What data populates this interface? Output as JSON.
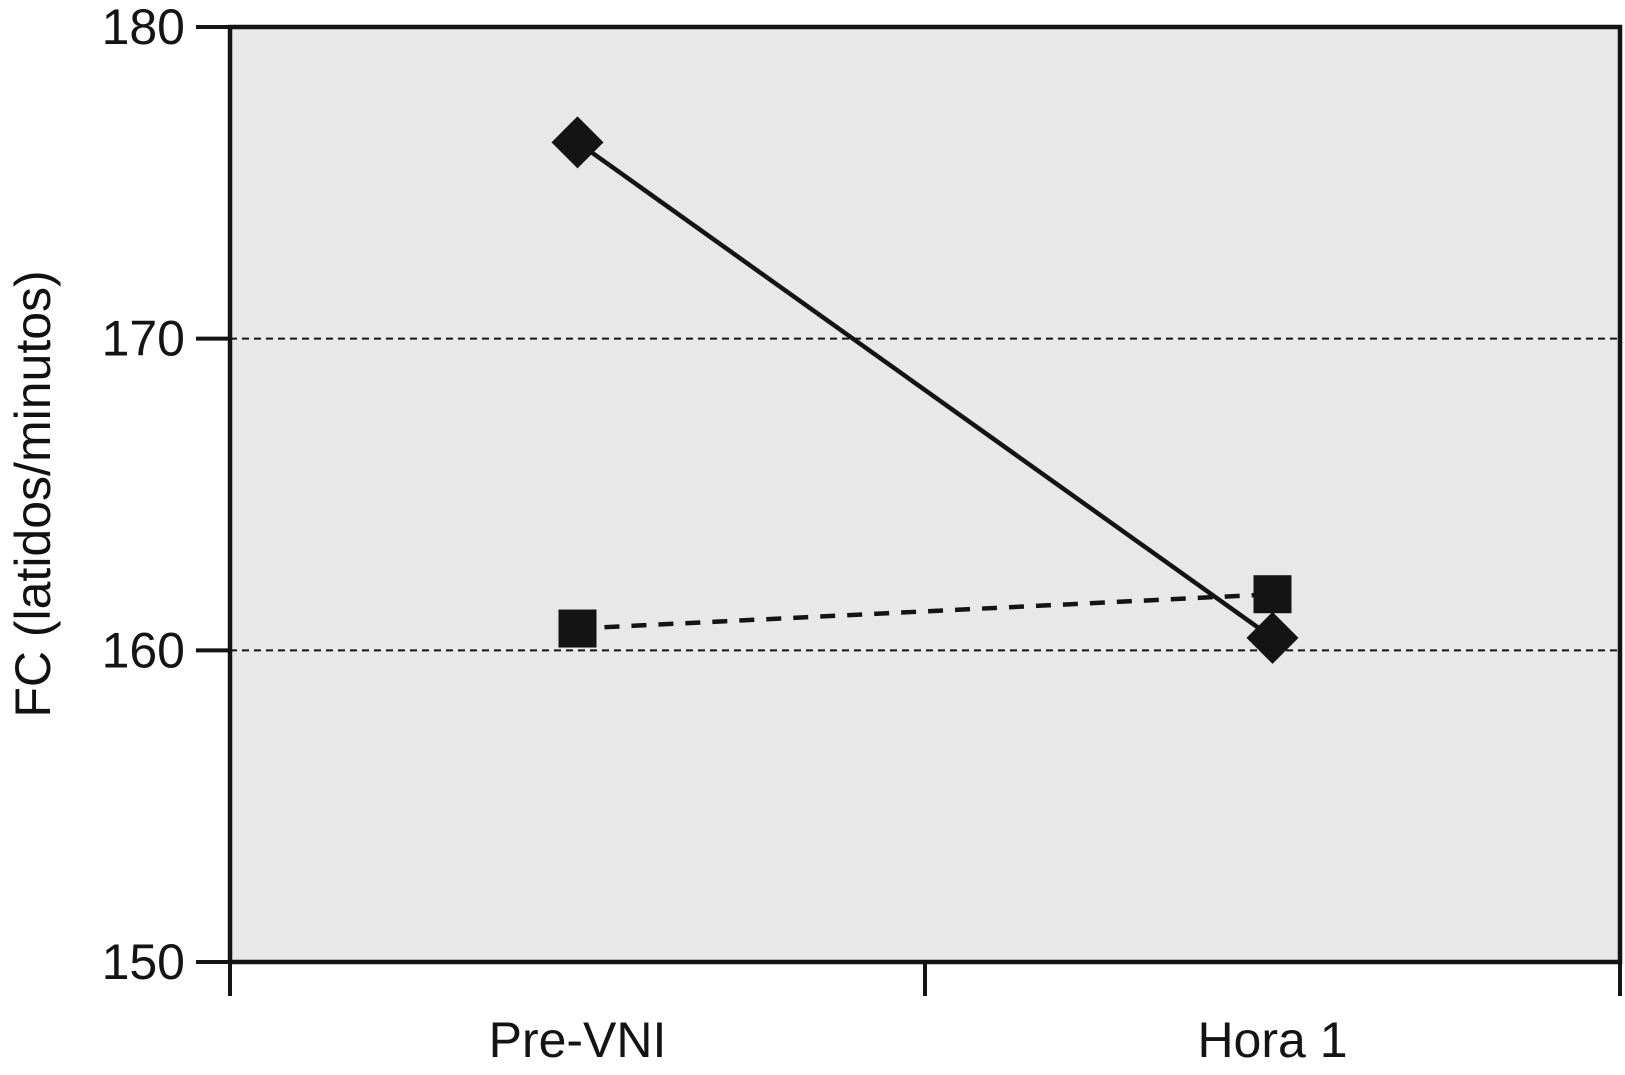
{
  "chart_data": {
    "type": "line",
    "title": "",
    "xlabel": "",
    "ylabel": "FC (latidos/minutos)",
    "categories": [
      "Pre-VNI",
      "Hora 1"
    ],
    "series": [
      {
        "marker": "diamond",
        "line_style": "solid",
        "values": [
          176.3,
          160.4
        ]
      },
      {
        "marker": "square",
        "line_style": "dashed",
        "values": [
          160.7,
          161.8
        ]
      }
    ],
    "ylim": [
      150,
      180
    ],
    "yticks": [
      150,
      160,
      170,
      180
    ],
    "gridlines_y": [
      160,
      170
    ],
    "legend_position": "none",
    "grid": "horizontal dotted gridlines at 160 and 170 only",
    "x_axis_tick_style": "ticks between categories",
    "colors": {
      "plot_background": "#e8e8e8",
      "foreground": "#141414",
      "page_background": "#ffffff"
    }
  }
}
